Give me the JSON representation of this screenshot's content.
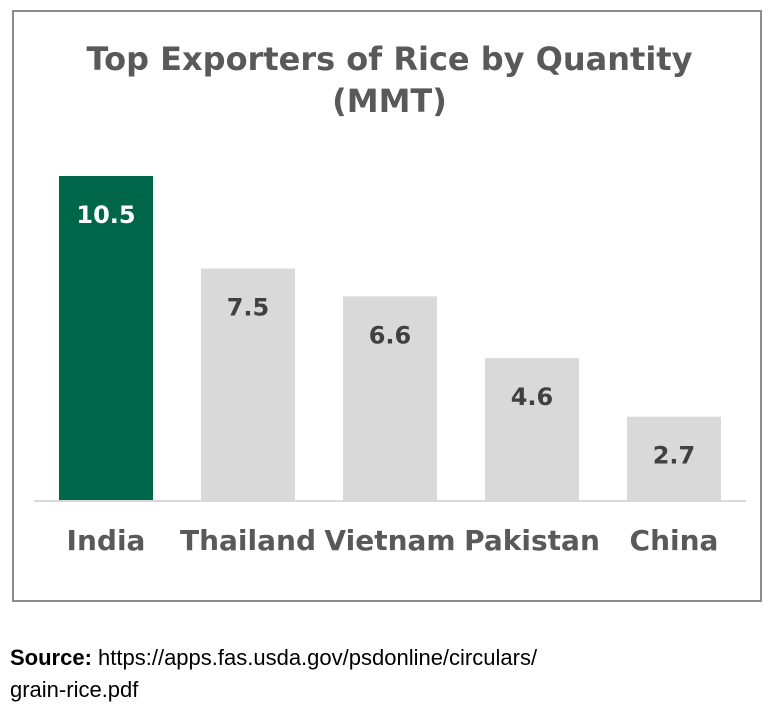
{
  "chart_data": {
    "type": "bar",
    "title_line1": "Top Exporters of Rice by Quantity",
    "title_line2": "(MMT)",
    "categories": [
      "India",
      "Thailand",
      "Vietnam",
      "Pakistan",
      "China"
    ],
    "values": [
      10.5,
      7.5,
      6.6,
      4.6,
      2.7
    ],
    "value_labels": [
      "10.5",
      "7.5",
      "6.6",
      "4.6",
      "2.7"
    ],
    "ylim": [
      0,
      10.5
    ],
    "grid": false,
    "legend": "none",
    "colors": {
      "highlight": "#00664a",
      "bar": "#d9d9d9",
      "highlight_label": "#ffffff",
      "label": "#404040",
      "category_label": "#595959",
      "axis": "#d9d9d9"
    },
    "highlight_index": 0
  },
  "source": {
    "label": "Source:",
    "text": " https://apps.fas.usda.gov/psdonline/circulars/",
    "text_line2": "grain-rice.pdf"
  }
}
